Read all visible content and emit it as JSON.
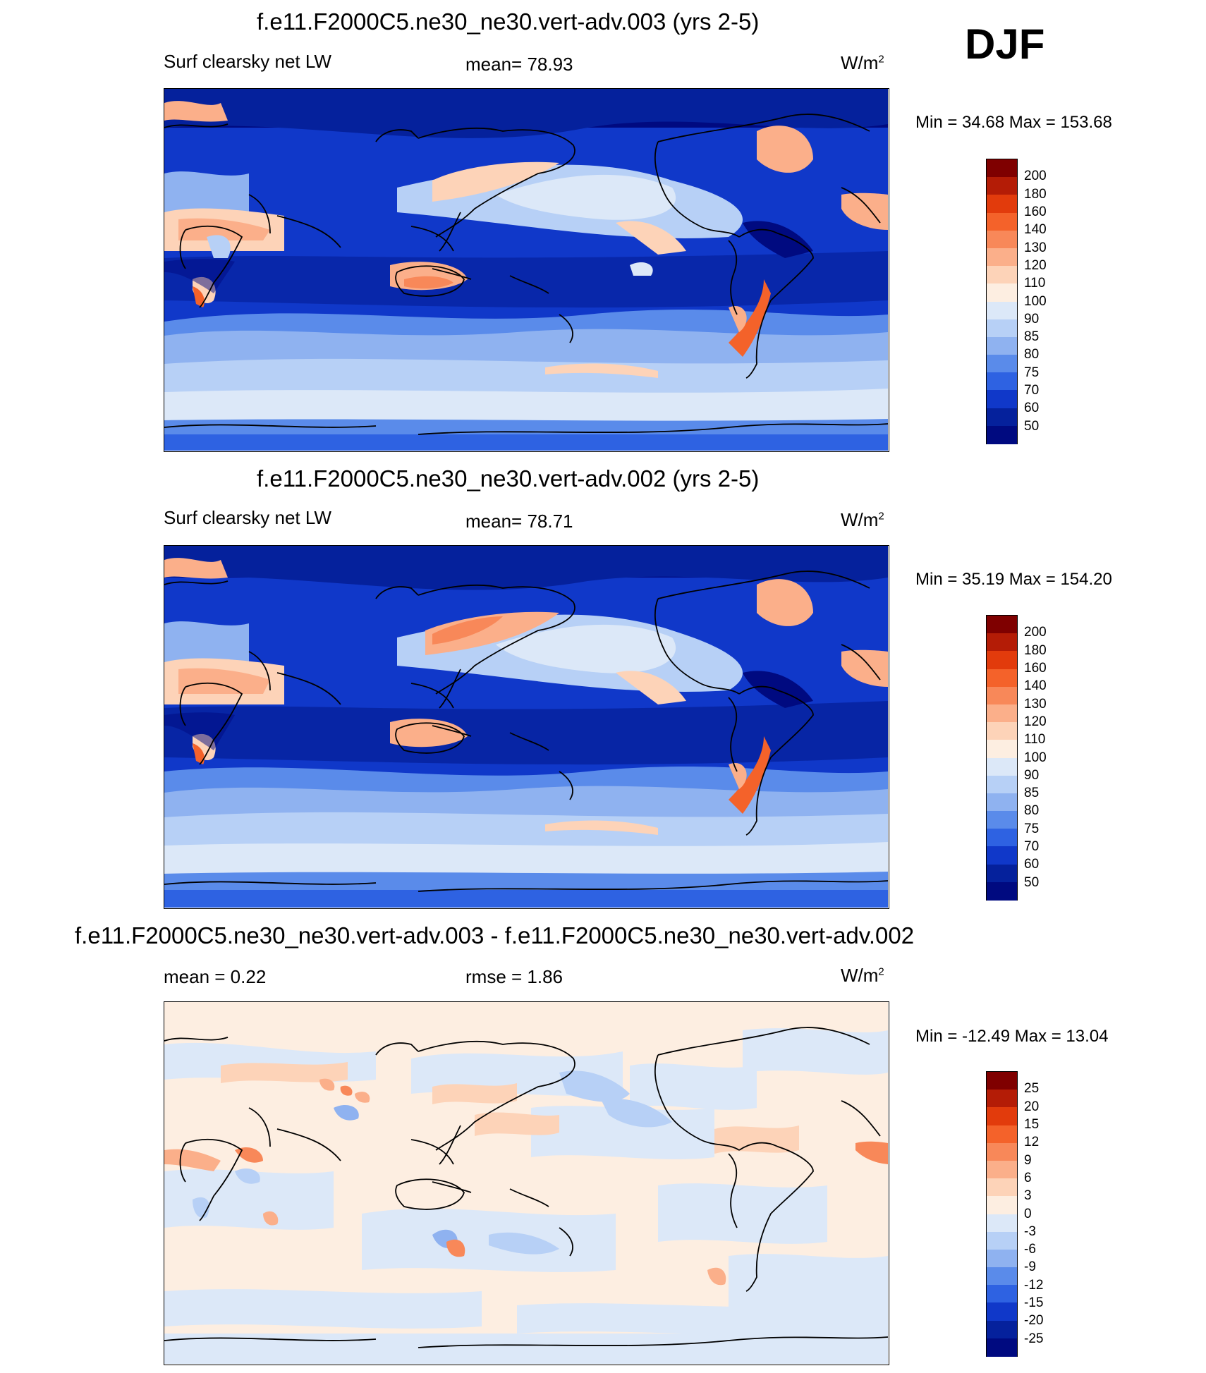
{
  "season": "DJF",
  "units_prefix": "W/m",
  "units_exp": "2",
  "panel1": {
    "title": "f.e11.F2000C5.ne30_ne30.vert-adv.003 (yrs 2-5)",
    "variable": "Surf clearsky net LW",
    "mean_label": "mean=  78.93",
    "minmax": "Min =  34.68 Max = 153.68"
  },
  "panel2": {
    "title": "f.e11.F2000C5.ne30_ne30.vert-adv.002 (yrs 2-5)",
    "variable": "Surf clearsky net LW",
    "mean_label": "mean=  78.71",
    "minmax": "Min =  35.19 Max = 154.20"
  },
  "panel3": {
    "title": "f.e11.F2000C5.ne30_ne30.vert-adv.003 - f.e11.F2000C5.ne30_ne30.vert-adv.002",
    "mean_label": "mean =   0.22",
    "rmse_label": "rmse =   1.86",
    "minmax": "Min = -12.49 Max =  13.04"
  },
  "colorbar_abs": {
    "labels": [
      "200",
      "180",
      "160",
      "140",
      "130",
      "120",
      "110",
      "100",
      "90",
      "85",
      "80",
      "75",
      "70",
      "60",
      "50"
    ],
    "colors": [
      "#7f0000",
      "#b41c06",
      "#e23b0c",
      "#f4622a",
      "#f88859",
      "#fbaf8a",
      "#fdd3b8",
      "#fdeee1",
      "#dce8f8",
      "#b7d0f6",
      "#8fb2f0",
      "#5a8bea",
      "#2e62e2",
      "#1038c9",
      "#05219c",
      "#000a80"
    ]
  },
  "colorbar_diff": {
    "labels": [
      "25",
      "20",
      "15",
      "12",
      "9",
      "6",
      "3",
      "0",
      "-3",
      "-6",
      "-9",
      "-12",
      "-15",
      "-20",
      "-25"
    ],
    "colors": [
      "#7f0000",
      "#b41c06",
      "#e23b0c",
      "#f4622a",
      "#f88859",
      "#fbaf8a",
      "#fdd3b8",
      "#fdeee1",
      "#dce8f8",
      "#b7d0f6",
      "#8fb2f0",
      "#5a8bea",
      "#2e62e2",
      "#1038c9",
      "#05219c",
      "#000a80"
    ]
  }
}
